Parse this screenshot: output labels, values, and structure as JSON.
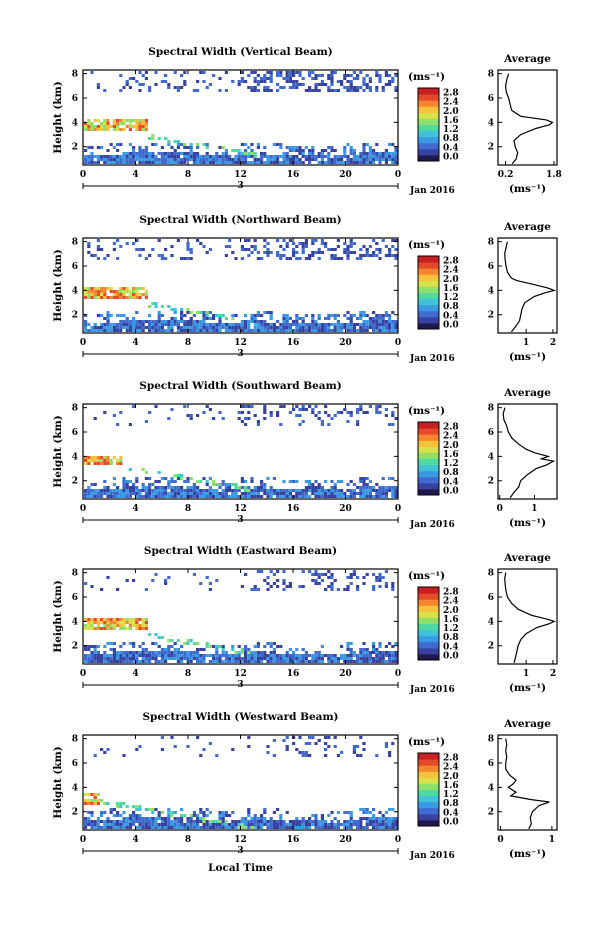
{
  "figure": {
    "xlabel": "Local Time",
    "date_label": "Jan 2016",
    "colorbar_unit": "(ms⁻¹)",
    "colorbar_colors": [
      "#1f1a4b",
      "#3842a0",
      "#3f6ad0",
      "#3a99e3",
      "#40c3d9",
      "#4fd9a0",
      "#8fe06a",
      "#d8e04a",
      "#f6c23a",
      "#f3862f",
      "#e74a2a",
      "#c71f22"
    ]
  },
  "chart_data": [
    {
      "type": "heatmap",
      "title": "Spectral Width (Vertical Beam)",
      "ylabel": "Height (km)",
      "xticks": [
        "0",
        "4",
        "8",
        "12",
        "16",
        "20",
        "0"
      ],
      "day_label": "3",
      "yticks": [
        "2",
        "4",
        "6",
        "8"
      ],
      "colorbar_ticks": [
        "0.0",
        "0.4",
        "0.8",
        "1.2",
        "1.6",
        "2.0",
        "2.4",
        "2.8"
      ],
      "avg_title": "Average",
      "avg_xticks": [
        "0.2",
        "1.8"
      ],
      "avg_xlabel": "(ms⁻¹)",
      "avg_yticks": [
        "2",
        "4",
        "6",
        "8"
      ],
      "avg_profile": {
        "height": [
          0.6,
          1.0,
          1.5,
          2.0,
          2.5,
          3.0,
          3.5,
          3.8,
          4.0,
          4.2,
          4.5,
          5.0,
          5.5,
          6.0,
          6.5,
          7.0,
          7.5,
          8.0
        ],
        "width": [
          0.42,
          0.55,
          0.6,
          0.52,
          0.48,
          0.7,
          1.2,
          1.65,
          1.75,
          1.55,
          0.7,
          0.4,
          0.35,
          0.3,
          0.22,
          0.2,
          0.24,
          0.3
        ]
      }
    },
    {
      "type": "heatmap",
      "title": "Spectral Width (Northward Beam)",
      "ylabel": "Height (km)",
      "xticks": [
        "0",
        "4",
        "8",
        "12",
        "16",
        "20",
        "0"
      ],
      "day_label": "3",
      "yticks": [
        "2",
        "4",
        "6",
        "8"
      ],
      "colorbar_ticks": [
        "0.0",
        "0.4",
        "0.8",
        "1.2",
        "1.6",
        "2.0",
        "2.4",
        "2.8"
      ],
      "avg_title": "Average",
      "avg_xticks": [
        "1",
        "2"
      ],
      "avg_xlabel": "(ms⁻¹)",
      "avg_yticks": [
        "2",
        "4",
        "6",
        "8"
      ],
      "avg_profile": {
        "height": [
          0.6,
          1.0,
          1.5,
          2.0,
          2.5,
          3.0,
          3.5,
          3.8,
          4.0,
          4.2,
          4.5,
          4.8,
          5.0,
          5.5,
          6.0,
          6.5,
          7.0,
          7.5,
          8.0
        ],
        "width": [
          0.45,
          0.6,
          0.75,
          0.8,
          0.85,
          0.95,
          1.3,
          1.7,
          2.05,
          1.8,
          1.25,
          0.65,
          0.45,
          0.3,
          0.25,
          0.22,
          0.2,
          0.25,
          0.3
        ]
      }
    },
    {
      "type": "heatmap",
      "title": "Spectral Width (Southward Beam)",
      "ylabel": "Height (km)",
      "xticks": [
        "0",
        "4",
        "8",
        "12",
        "16",
        "20",
        "0"
      ],
      "day_label": "3",
      "yticks": [
        "2",
        "4",
        "6",
        "8"
      ],
      "colorbar_ticks": [
        "0.0",
        "0.4",
        "0.8",
        "1.2",
        "1.6",
        "2.0",
        "2.4",
        "2.8"
      ],
      "avg_title": "Average",
      "avg_xticks": [
        "0",
        "1"
      ],
      "avg_xlabel": "(ms⁻¹)",
      "avg_yticks": [
        "2",
        "4",
        "6",
        "8"
      ],
      "avg_profile": {
        "height": [
          0.6,
          1.0,
          1.5,
          2.0,
          2.5,
          3.0,
          3.3,
          3.6,
          3.8,
          4.0,
          4.3,
          4.6,
          5.0,
          5.5,
          6.0,
          6.5,
          7.0,
          7.5,
          8.0
        ],
        "width": [
          0.3,
          0.4,
          0.55,
          0.6,
          0.8,
          1.05,
          1.35,
          1.55,
          1.2,
          1.4,
          1.0,
          0.75,
          0.55,
          0.35,
          0.25,
          0.2,
          0.12,
          0.1,
          0.15
        ]
      }
    },
    {
      "type": "heatmap",
      "title": "Spectral Width (Eastward Beam)",
      "ylabel": "Height (km)",
      "xticks": [
        "0",
        "4",
        "8",
        "12",
        "16",
        "20",
        "0"
      ],
      "day_label": "3",
      "yticks": [
        "2",
        "4",
        "6",
        "8"
      ],
      "colorbar_ticks": [
        "0.0",
        "0.4",
        "0.8",
        "1.2",
        "1.6",
        "2.0",
        "2.4",
        "2.8"
      ],
      "avg_title": "Average",
      "avg_xticks": [
        "1",
        "2"
      ],
      "avg_xlabel": "(ms⁻¹)",
      "avg_yticks": [
        "2",
        "4",
        "6",
        "8"
      ],
      "avg_profile": {
        "height": [
          0.6,
          1.0,
          1.5,
          2.0,
          2.5,
          3.0,
          3.5,
          3.8,
          4.0,
          4.2,
          4.5,
          5.0,
          5.5,
          6.0,
          6.5,
          7.0,
          7.5,
          8.0
        ],
        "width": [
          0.55,
          0.6,
          0.65,
          0.7,
          0.8,
          1.0,
          1.4,
          1.85,
          2.05,
          1.75,
          1.2,
          0.7,
          0.45,
          0.3,
          0.25,
          0.22,
          0.2,
          0.24
        ]
      }
    },
    {
      "type": "heatmap",
      "title": "Spectral Width (Westward Beam)",
      "ylabel": "Height (km)",
      "xticks": [
        "0",
        "4",
        "8",
        "12",
        "16",
        "20",
        "0"
      ],
      "day_label": "3",
      "yticks": [
        "2",
        "4",
        "6",
        "8"
      ],
      "colorbar_ticks": [
        "0.0",
        "0.4",
        "0.8",
        "1.2",
        "1.6",
        "2.0",
        "2.4",
        "2.8"
      ],
      "avg_title": "Average",
      "avg_xticks": [
        "0",
        "1"
      ],
      "avg_xlabel": "(ms⁻¹)",
      "avg_yticks": [
        "2",
        "4",
        "6",
        "8"
      ],
      "avg_profile": {
        "height": [
          0.6,
          1.0,
          1.5,
          2.0,
          2.5,
          2.8,
          3.0,
          3.3,
          3.6,
          4.0,
          4.3,
          4.6,
          5.0,
          5.5,
          6.0,
          6.5,
          7.0,
          7.5,
          8.0
        ],
        "width": [
          0.55,
          0.6,
          0.58,
          0.62,
          0.75,
          0.95,
          0.6,
          0.2,
          0.3,
          0.15,
          0.25,
          0.3,
          0.18,
          0.1,
          0.1,
          0.12,
          0.1,
          0.12,
          0.1
        ]
      }
    }
  ]
}
